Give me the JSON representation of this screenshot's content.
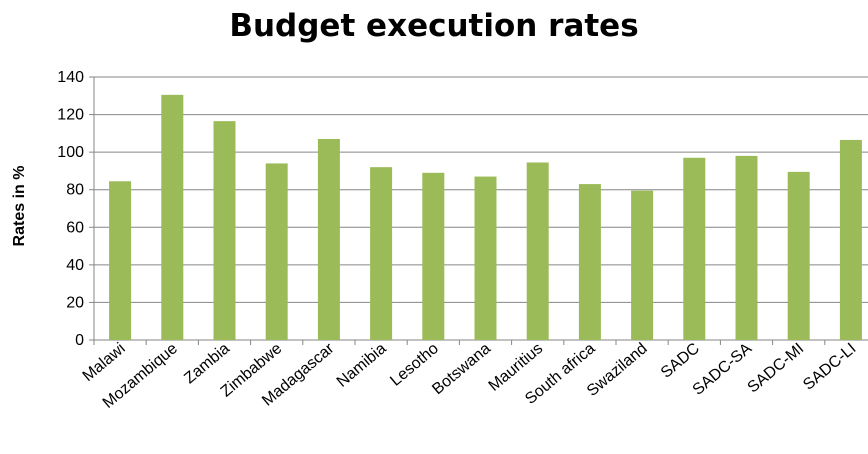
{
  "chart_data": {
    "type": "bar",
    "title": "Budget execution rates",
    "xlabel": "",
    "ylabel": "Rates in %",
    "ylim": [
      0,
      140
    ],
    "yticks": [
      0,
      20,
      40,
      60,
      80,
      100,
      120,
      140
    ],
    "grid": true,
    "legend": "none",
    "bar_color": "#9BBB59",
    "categories": [
      "Malawi",
      "Mozambique",
      "Zambia",
      "Zimbabwe",
      "Madagascar",
      "Namibia",
      "Lesotho",
      "Botswana",
      "Mauritius",
      "South africa",
      "Swaziland",
      "SADC",
      "SADC-SA",
      "SADC-MI",
      "SADC-LI"
    ],
    "values": [
      84.5,
      130.5,
      116.5,
      94,
      107,
      92,
      89,
      87,
      94.5,
      83,
      79.5,
      97,
      98,
      89.5,
      106.5
    ]
  }
}
